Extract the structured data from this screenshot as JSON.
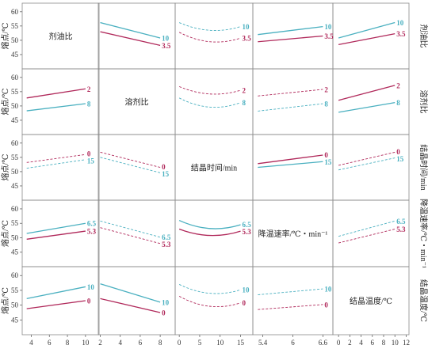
{
  "chart_data": {
    "type": "line",
    "colors": {
      "high": "#4ab0c0",
      "low": "#b0285a",
      "frame": "#8a8a8a"
    },
    "ylabel": "熔点/℃",
    "ylim": [
      40,
      63
    ],
    "yticks": [
      40,
      45,
      50,
      55,
      60
    ],
    "factors": [
      {
        "name": "剂油比",
        "xlim": [
          3,
          11.5
        ],
        "xticks": [
          4,
          6,
          8,
          10
        ],
        "levels": [
          "10",
          "3.5"
        ]
      },
      {
        "name": "溶剂比",
        "xlim": [
          1.8,
          9.5
        ],
        "xticks": [
          2,
          4,
          6,
          8
        ],
        "levels": [
          "2",
          "8"
        ]
      },
      {
        "name": "结晶时间/min",
        "xlim": [
          -1,
          18
        ],
        "xticks": [
          0,
          5,
          10,
          15
        ],
        "levels": [
          "0",
          "15"
        ]
      },
      {
        "name": "降温速率/℃・min⁻¹",
        "xlim": [
          5.2,
          6.8
        ],
        "xticks": [
          5.4,
          6,
          6.6
        ],
        "levels": [
          "6.5",
          "5.3"
        ]
      },
      {
        "name": "结晶温度/℃",
        "xlim": [
          -1,
          12.5
        ],
        "xticks": [
          0,
          2,
          4,
          6,
          8,
          10,
          12
        ],
        "levels": [
          "10",
          "0"
        ]
      }
    ],
    "panels": [
      {
        "row": 0,
        "col": 1,
        "x_start": 2,
        "x_end": 8,
        "curve": "linear",
        "significant": true,
        "series": [
          {
            "level": "10",
            "color": "high",
            "y_start": 56.2,
            "y_end": 50.8
          },
          {
            "level": "3.5",
            "color": "low",
            "y_start": 53.0,
            "y_end": 48.2
          }
        ]
      },
      {
        "row": 0,
        "col": 2,
        "x_start": 0,
        "x_end": 15,
        "curve": "quadratic",
        "significant": false,
        "series": [
          {
            "level": "10",
            "color": "high",
            "y_start": 56.2,
            "y_mid": 53.5,
            "y_end": 54.8
          },
          {
            "level": "3.5",
            "color": "low",
            "y_start": 52.8,
            "y_mid": 49.5,
            "y_end": 50.8
          }
        ]
      },
      {
        "row": 0,
        "col": 3,
        "x_start": 5.3,
        "x_end": 6.6,
        "curve": "linear",
        "significant": true,
        "series": [
          {
            "level": "10",
            "color": "high",
            "y_start": 52.0,
            "y_end": 54.8
          },
          {
            "level": "3.5",
            "color": "low",
            "y_start": 49.5,
            "y_end": 51.5
          }
        ]
      },
      {
        "row": 0,
        "col": 4,
        "x_start": 0,
        "x_end": 10,
        "curve": "linear",
        "significant": true,
        "series": [
          {
            "level": "10",
            "color": "high",
            "y_start": 50.8,
            "y_end": 56.2
          },
          {
            "level": "3.5",
            "color": "low",
            "y_start": 48.5,
            "y_end": 52.3
          }
        ]
      },
      {
        "row": 1,
        "col": 0,
        "x_start": 3.5,
        "x_end": 10,
        "curve": "linear",
        "significant": true,
        "series": [
          {
            "level": "2",
            "color": "low",
            "y_start": 52.8,
            "y_end": 56.0
          },
          {
            "level": "8",
            "color": "high",
            "y_start": 48.3,
            "y_end": 50.8
          }
        ]
      },
      {
        "row": 1,
        "col": 2,
        "x_start": 0,
        "x_end": 15,
        "curve": "quadratic",
        "significant": false,
        "series": [
          {
            "level": "2",
            "color": "low",
            "y_start": 56.8,
            "y_mid": 54.2,
            "y_end": 55.5
          },
          {
            "level": "8",
            "color": "high",
            "y_start": 52.8,
            "y_mid": 49.6,
            "y_end": 51.2
          }
        ]
      },
      {
        "row": 1,
        "col": 3,
        "x_start": 5.3,
        "x_end": 6.6,
        "curve": "linear",
        "significant": false,
        "series": [
          {
            "level": "2",
            "color": "low",
            "y_start": 53.5,
            "y_end": 55.8
          },
          {
            "level": "8",
            "color": "high",
            "y_start": 48.2,
            "y_end": 50.8
          }
        ]
      },
      {
        "row": 1,
        "col": 4,
        "x_start": 0,
        "x_end": 10,
        "curve": "linear",
        "significant": true,
        "series": [
          {
            "level": "2",
            "color": "low",
            "y_start": 52.0,
            "y_end": 57.2
          },
          {
            "level": "8",
            "color": "high",
            "y_start": 47.8,
            "y_end": 51.2
          }
        ]
      },
      {
        "row": 2,
        "col": 0,
        "x_start": 3.5,
        "x_end": 10,
        "curve": "linear",
        "significant": false,
        "series": [
          {
            "level": "0",
            "color": "low",
            "y_start": 53.2,
            "y_end": 56.0
          },
          {
            "level": "15",
            "color": "high",
            "y_start": 51.2,
            "y_end": 54.2
          }
        ]
      },
      {
        "row": 2,
        "col": 1,
        "x_start": 2,
        "x_end": 8,
        "curve": "linear",
        "significant": false,
        "series": [
          {
            "level": "0",
            "color": "low",
            "y_start": 56.8,
            "y_end": 51.5
          },
          {
            "level": "15",
            "color": "high",
            "y_start": 55.0,
            "y_end": 49.6
          }
        ]
      },
      {
        "row": 2,
        "col": 3,
        "x_start": 5.3,
        "x_end": 6.6,
        "curve": "linear",
        "significant": true,
        "series": [
          {
            "level": "0",
            "color": "low",
            "y_start": 52.8,
            "y_end": 55.8
          },
          {
            "level": "15",
            "color": "high",
            "y_start": 51.5,
            "y_end": 53.5
          }
        ]
      },
      {
        "row": 2,
        "col": 4,
        "x_start": 0,
        "x_end": 10,
        "curve": "linear",
        "significant": false,
        "series": [
          {
            "level": "0",
            "color": "low",
            "y_start": 52.2,
            "y_end": 56.8
          },
          {
            "level": "15",
            "color": "high",
            "y_start": 50.6,
            "y_end": 54.8
          }
        ]
      },
      {
        "row": 3,
        "col": 0,
        "x_start": 3.5,
        "x_end": 10,
        "curve": "linear",
        "significant": true,
        "series": [
          {
            "level": "6.5",
            "color": "high",
            "y_start": 51.5,
            "y_end": 55.0
          },
          {
            "level": "5.3",
            "color": "low",
            "y_start": 49.5,
            "y_end": 52.3
          }
        ]
      },
      {
        "row": 3,
        "col": 1,
        "x_start": 2,
        "x_end": 8,
        "curve": "linear",
        "significant": false,
        "series": [
          {
            "level": "6.5",
            "color": "high",
            "y_start": 55.8,
            "y_end": 50.2
          },
          {
            "level": "5.3",
            "color": "low",
            "y_start": 53.5,
            "y_end": 48.0
          }
        ]
      },
      {
        "row": 3,
        "col": 2,
        "x_start": 0,
        "x_end": 15,
        "curve": "quadratic",
        "significant": true,
        "series": [
          {
            "level": "6.5",
            "color": "high",
            "y_start": 56.0,
            "y_mid": 53.2,
            "y_end": 54.5
          },
          {
            "level": "5.3",
            "color": "low",
            "y_start": 53.0,
            "y_mid": 50.8,
            "y_end": 52.3
          }
        ]
      },
      {
        "row": 3,
        "col": 4,
        "x_start": 0,
        "x_end": 10,
        "curve": "linear",
        "significant": false,
        "series": [
          {
            "level": "6.5",
            "color": "high",
            "y_start": 50.5,
            "y_end": 55.8
          },
          {
            "level": "5.3",
            "color": "low",
            "y_start": 48.2,
            "y_end": 53.0
          }
        ]
      },
      {
        "row": 4,
        "col": 0,
        "x_start": 3.5,
        "x_end": 10,
        "curve": "linear",
        "significant": true,
        "series": [
          {
            "level": "10",
            "color": "high",
            "y_start": 52.2,
            "y_end": 56.2
          },
          {
            "level": "0",
            "color": "low",
            "y_start": 48.8,
            "y_end": 51.5
          }
        ]
      },
      {
        "row": 4,
        "col": 1,
        "x_start": 2,
        "x_end": 8,
        "curve": "linear",
        "significant": true,
        "series": [
          {
            "level": "10",
            "color": "high",
            "y_start": 57.2,
            "y_end": 51.0
          },
          {
            "level": "0",
            "color": "low",
            "y_start": 52.2,
            "y_end": 47.5
          }
        ]
      },
      {
        "row": 4,
        "col": 2,
        "x_start": 0,
        "x_end": 15,
        "curve": "quadratic",
        "significant": false,
        "series": [
          {
            "level": "10",
            "color": "high",
            "y_start": 57.0,
            "y_mid": 54.0,
            "y_end": 55.2
          },
          {
            "level": "0",
            "color": "low",
            "y_start": 53.0,
            "y_mid": 49.6,
            "y_end": 50.8
          }
        ]
      },
      {
        "row": 4,
        "col": 3,
        "x_start": 5.3,
        "x_end": 6.6,
        "curve": "linear",
        "significant": false,
        "series": [
          {
            "level": "10",
            "color": "high",
            "y_start": 53.5,
            "y_end": 55.5
          },
          {
            "level": "0",
            "color": "low",
            "y_start": 48.5,
            "y_end": 50.2
          }
        ]
      }
    ]
  }
}
